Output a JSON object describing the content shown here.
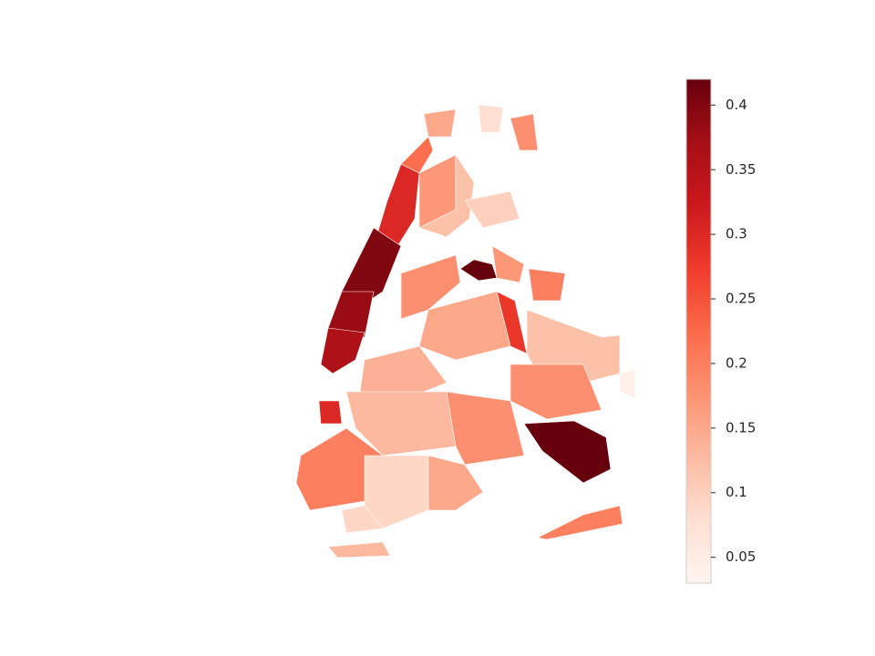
{
  "chart_data": {
    "type": "choropleth",
    "colormap": "Reds",
    "values": [
      0.3,
      0.4,
      0.38,
      0.36,
      0.22,
      0.15,
      0.17,
      0.12,
      0.08,
      0.18,
      0.1,
      0.42,
      0.18,
      0.17,
      0.2,
      0.28,
      0.15,
      0.12,
      0.18,
      0.42,
      0.2,
      0.14,
      0.3,
      0.13,
      0.18,
      0.2,
      0.09,
      0.15,
      0.13,
      0.09,
      0.04
    ],
    "clim": [
      0.03,
      0.42
    ],
    "cticks": [
      0.05,
      0.1,
      0.15,
      0.2,
      0.25,
      0.3,
      0.35,
      0.4
    ]
  }
}
